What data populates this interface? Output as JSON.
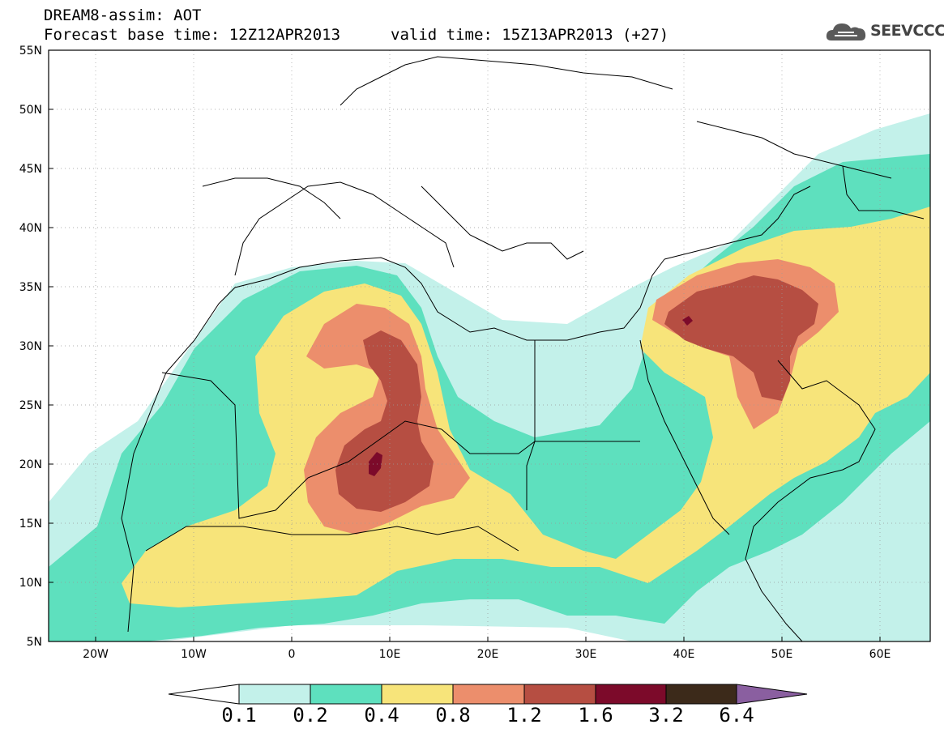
{
  "header": {
    "line1": "DREAM8-assim: AOT",
    "line2": "Forecast base time: 12Z12APR2013",
    "valid": "valid time: 15Z13APR2013 (+27)",
    "logo_text": "SEEVCCC"
  },
  "axes": {
    "lat_labels": [
      "55N",
      "50N",
      "45N",
      "40N",
      "35N",
      "30N",
      "25N",
      "20N",
      "15N",
      "10N",
      "5N"
    ],
    "lon_labels": [
      "20W",
      "10W",
      "0",
      "10E",
      "20E",
      "30E",
      "40E",
      "50E",
      "60E"
    ],
    "lon_range": [
      -25,
      65
    ],
    "lat_range": [
      5,
      55
    ],
    "grid": "dotted"
  },
  "colorbar": {
    "labels": [
      "0.1",
      "0.2",
      "0.4",
      "0.8",
      "1.2",
      "1.6",
      "3.2",
      "6.4"
    ],
    "colors": [
      "#ffffff",
      "#c3f1ea",
      "#5ee0be",
      "#f7e47a",
      "#ec8e6c",
      "#b64e42",
      "#7c0a2a",
      "#3c2a1a",
      "#8a5fa0"
    ]
  },
  "icons": {
    "logo": "cloud-logo-icon"
  }
}
